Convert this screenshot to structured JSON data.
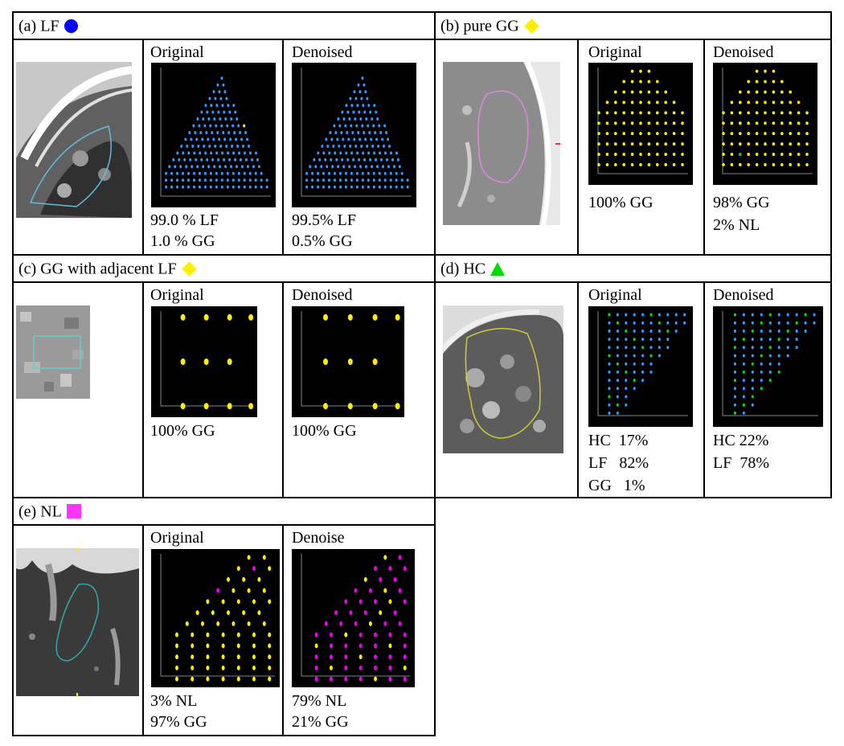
{
  "panels": {
    "a": {
      "label": "(a) LF",
      "marker": {
        "shape": "circle",
        "color": "#0000ff"
      },
      "original": {
        "title": "Original",
        "lines": [
          "99.0 % LF",
          "1.0 % GG"
        ]
      },
      "denoised": {
        "title": "Denoised",
        "lines": [
          "99.5% LF",
          "0.5% GG"
        ]
      }
    },
    "b": {
      "label": "(b) pure GG",
      "marker": {
        "shape": "diamond",
        "color": "#ffee00"
      },
      "original": {
        "title": "Original",
        "lines": [
          "100% GG"
        ]
      },
      "denoised": {
        "title": "Denoised",
        "lines": [
          "98% GG",
          "2% NL"
        ]
      }
    },
    "c": {
      "label": "(c) GG with adjacent LF",
      "marker": {
        "shape": "diamond",
        "color": "#ffee00"
      },
      "original": {
        "title": "Original",
        "lines": [
          "100% GG"
        ]
      },
      "denoised": {
        "title": "Denoised",
        "lines": [
          "100% GG"
        ]
      }
    },
    "d": {
      "label": "(d) HC",
      "marker": {
        "shape": "triangle",
        "color": "#00dd00"
      },
      "original": {
        "title": "Original",
        "lines": [
          "HC  17%",
          "LF   82%",
          "GG   1%"
        ]
      },
      "denoised": {
        "title": "Denoised",
        "lines": [
          "HC 22%",
          "LF  78%"
        ]
      }
    },
    "e": {
      "label": "(e) NL",
      "marker": {
        "shape": "square",
        "color": "#ff33ff"
      },
      "original": {
        "title": "Original",
        "lines": [
          "3% NL",
          "97% GG"
        ]
      },
      "denoised": {
        "title": "Denoise",
        "lines": [
          "79% NL",
          "21% GG"
        ]
      }
    }
  },
  "class_colors": {
    "LF": "#3399ff",
    "GG": "#ffee00",
    "HC": "#00dd00",
    "NL": "#ee00ee"
  }
}
